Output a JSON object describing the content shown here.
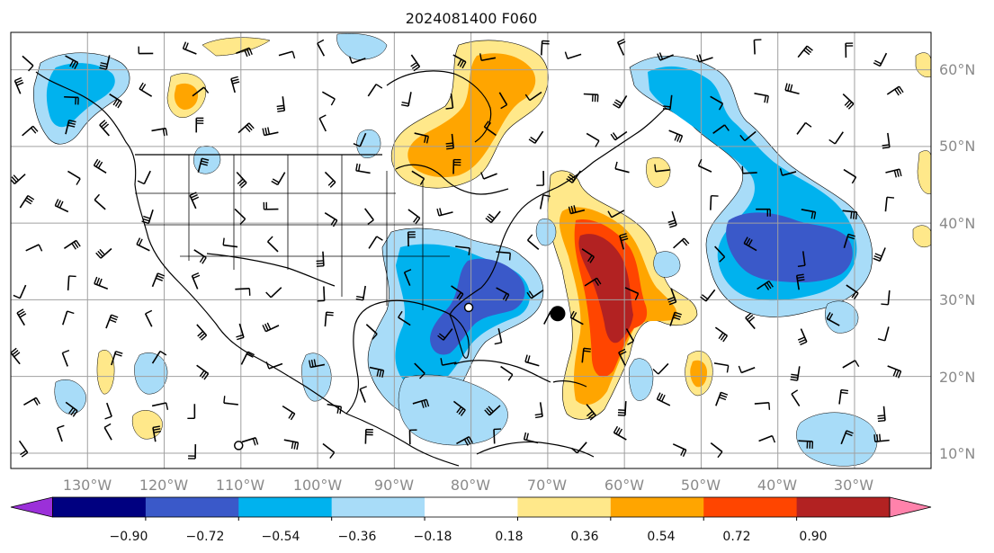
{
  "title": "2024081400 F060",
  "latitude_labels": [
    "60°N",
    "50°N",
    "40°N",
    "30°N",
    "20°N",
    "10°N"
  ],
  "longitude_labels": [
    "130°W",
    "120°W",
    "110°W",
    "100°W",
    "90°W",
    "80°W",
    "70°W",
    "60°W",
    "50°W",
    "40°W",
    "30°W"
  ],
  "colorbar": {
    "ticks": [
      "−0.90",
      "−0.72",
      "−0.54",
      "−0.36",
      "−0.18",
      "0.18",
      "0.36",
      "0.54",
      "0.72",
      "0.90"
    ],
    "colors": [
      "#9b30d9",
      "#000080",
      "#3a59c9",
      "#00b2ee",
      "#a8dcf8",
      "#ffffff",
      "#ffe88a",
      "#ffa500",
      "#ff4500",
      "#b22222",
      "#ff82ab"
    ],
    "extend": "both"
  },
  "map": {
    "projection": "equirectangular",
    "lon_range": [
      -140,
      -20
    ],
    "lat_range": [
      8,
      65
    ],
    "gridline_color": "#a0a0a0",
    "land_outline_color": "#000000",
    "markers": [
      {
        "name": "storm-center",
        "lon": -68.7,
        "lat": 28.2,
        "style": "filled"
      },
      {
        "name": "open-circle-florida",
        "lon": -80.3,
        "lat": 29.0,
        "style": "open"
      },
      {
        "name": "open-circle-pacific",
        "lon": -110.3,
        "lat": 11.0,
        "style": "open"
      }
    ]
  }
}
